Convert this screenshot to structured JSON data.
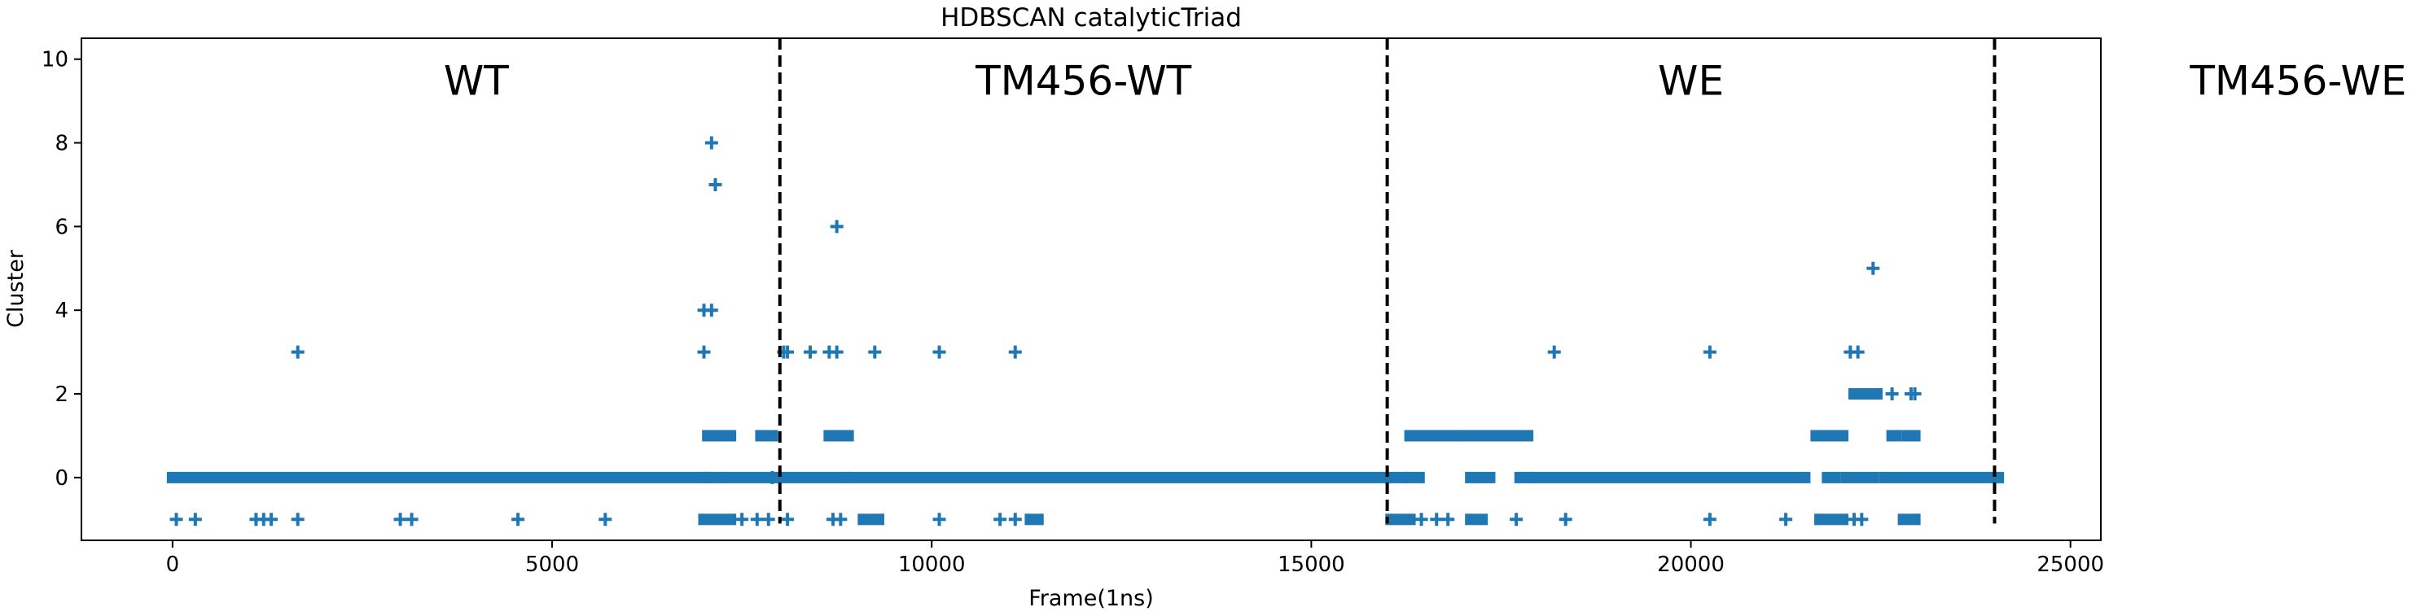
{
  "chart_data": {
    "type": "scatter",
    "title": "HDBSCAN catalyticTriad",
    "xlabel": "Frame(1ns)",
    "ylabel": "Cluster",
    "xlim": [
      -1200,
      25400
    ],
    "ylim": [
      -1.5,
      10.5
    ],
    "xticks": [
      0,
      5000,
      10000,
      15000,
      20000,
      25000
    ],
    "yticks": [
      0,
      2,
      4,
      6,
      8,
      10
    ],
    "marker": "+",
    "marker_color": "#1f77b4",
    "grid": false,
    "legend": "none",
    "dividers": [
      8000,
      16000,
      24000
    ],
    "regions": [
      {
        "label": "WT",
        "x": 4000
      },
      {
        "label": "TM456-WT",
        "x": 12000
      },
      {
        "label": "WE",
        "x": 20000
      },
      {
        "label": "TM456-WE",
        "x": 28000
      }
    ],
    "segments": [
      {
        "y": 0,
        "x0": 0,
        "x1": 7000
      },
      {
        "y": 0,
        "x0": 7050,
        "x1": 7200
      },
      {
        "y": 0,
        "x0": 7300,
        "x1": 8850
      },
      {
        "y": 0,
        "x0": 8950,
        "x1": 16200
      },
      {
        "y": 0,
        "x0": 16300,
        "x1": 16420
      },
      {
        "y": 0,
        "x0": 17100,
        "x1": 17350
      },
      {
        "y": 0,
        "x0": 17750,
        "x1": 17850
      },
      {
        "y": 0,
        "x0": 17950,
        "x1": 21500
      },
      {
        "y": 0,
        "x0": 21800,
        "x1": 21900
      },
      {
        "y": 0,
        "x0": 22050,
        "x1": 22400
      },
      {
        "y": 0,
        "x0": 22550,
        "x1": 24050
      },
      {
        "y": 1,
        "x0": 7050,
        "x1": 7350
      },
      {
        "y": 1,
        "x0": 7750,
        "x1": 7900
      },
      {
        "y": 1,
        "x0": 8650,
        "x1": 8900
      },
      {
        "y": 1,
        "x0": 16300,
        "x1": 16950
      },
      {
        "y": 1,
        "x0": 17000,
        "x1": 17850
      },
      {
        "y": 1,
        "x0": 21650,
        "x1": 22000
      },
      {
        "y": 1,
        "x0": 22650,
        "x1": 22700
      },
      {
        "y": 1,
        "x0": 22850,
        "x1": 22950
      },
      {
        "y": 2,
        "x0": 22150,
        "x1": 22450
      },
      {
        "y": -1,
        "x0": 7000,
        "x1": 7350
      },
      {
        "y": -1,
        "x0": 9100,
        "x1": 9300
      },
      {
        "y": -1,
        "x0": 11300,
        "x1": 11400
      },
      {
        "y": -1,
        "x0": 16050,
        "x1": 16300
      },
      {
        "y": -1,
        "x0": 17100,
        "x1": 17250
      },
      {
        "y": -1,
        "x0": 21700,
        "x1": 22000
      },
      {
        "y": -1,
        "x0": 22800,
        "x1": 22950
      }
    ],
    "points": [
      {
        "x": 7100,
        "y": 8
      },
      {
        "x": 7150,
        "y": 7
      },
      {
        "x": 8750,
        "y": 6
      },
      {
        "x": 22400,
        "y": 5
      },
      {
        "x": 7000,
        "y": 4
      },
      {
        "x": 7100,
        "y": 4
      },
      {
        "x": 1650,
        "y": 3
      },
      {
        "x": 7000,
        "y": 3
      },
      {
        "x": 8050,
        "y": 3
      },
      {
        "x": 8100,
        "y": 3
      },
      {
        "x": 8400,
        "y": 3
      },
      {
        "x": 8650,
        "y": 3
      },
      {
        "x": 8750,
        "y": 3
      },
      {
        "x": 9250,
        "y": 3
      },
      {
        "x": 10100,
        "y": 3
      },
      {
        "x": 11100,
        "y": 3
      },
      {
        "x": 18200,
        "y": 3
      },
      {
        "x": 20250,
        "y": 3
      },
      {
        "x": 22100,
        "y": 3
      },
      {
        "x": 22200,
        "y": 3
      },
      {
        "x": 22650,
        "y": 2
      },
      {
        "x": 22900,
        "y": 2
      },
      {
        "x": 22950,
        "y": 2
      },
      {
        "x": 7900,
        "y": 0
      },
      {
        "x": 50,
        "y": -1
      },
      {
        "x": 300,
        "y": -1
      },
      {
        "x": 1100,
        "y": -1
      },
      {
        "x": 1200,
        "y": -1
      },
      {
        "x": 1300,
        "y": -1
      },
      {
        "x": 1650,
        "y": -1
      },
      {
        "x": 3000,
        "y": -1
      },
      {
        "x": 3150,
        "y": -1
      },
      {
        "x": 4550,
        "y": -1
      },
      {
        "x": 5700,
        "y": -1
      },
      {
        "x": 7500,
        "y": -1
      },
      {
        "x": 7700,
        "y": -1
      },
      {
        "x": 7850,
        "y": -1
      },
      {
        "x": 8100,
        "y": -1
      },
      {
        "x": 8700,
        "y": -1
      },
      {
        "x": 8800,
        "y": -1
      },
      {
        "x": 10100,
        "y": -1
      },
      {
        "x": 10900,
        "y": -1
      },
      {
        "x": 11100,
        "y": -1
      },
      {
        "x": 16450,
        "y": -1
      },
      {
        "x": 16650,
        "y": -1
      },
      {
        "x": 16800,
        "y": -1
      },
      {
        "x": 17700,
        "y": -1
      },
      {
        "x": 18350,
        "y": -1
      },
      {
        "x": 20250,
        "y": -1
      },
      {
        "x": 21250,
        "y": -1
      },
      {
        "x": 22150,
        "y": -1
      },
      {
        "x": 22250,
        "y": -1
      }
    ]
  }
}
